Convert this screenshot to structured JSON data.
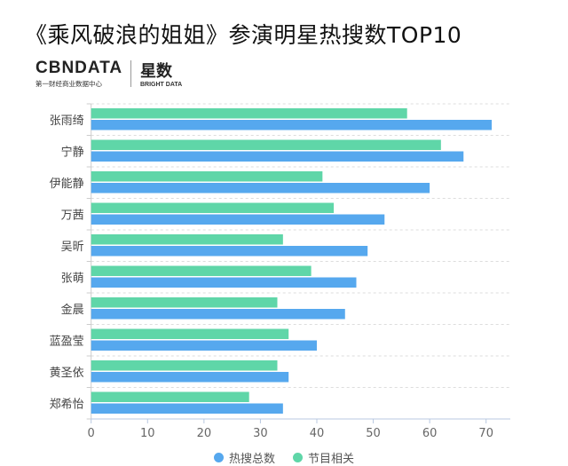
{
  "title": "《乘风破浪的姐姐》参演明星热搜数TOP10",
  "logo": {
    "brand": "CBNDATA",
    "brand_sub": "第一财经商业数据中心",
    "product": "星数",
    "product_sub": "BRIGHT DATA"
  },
  "chart_data": {
    "type": "bar",
    "orientation": "horizontal",
    "title": "《乘风破浪的姐姐》参演明星热搜数TOP10",
    "categories": [
      "张雨绮",
      "宁静",
      "伊能静",
      "万茜",
      "吴昕",
      "张萌",
      "金晨",
      "蓝盈莹",
      "黄圣依",
      "郑希怡"
    ],
    "series": [
      {
        "name": "热搜总数",
        "color": "#56a8ee",
        "values": [
          71,
          66,
          60,
          52,
          49,
          47,
          45,
          40,
          35,
          34
        ]
      },
      {
        "name": "节目相关",
        "color": "#5fd6a8",
        "values": [
          56,
          62,
          41,
          43,
          34,
          39,
          33,
          35,
          33,
          28
        ]
      }
    ],
    "xticks": [
      "0",
      "10",
      "20",
      "30",
      "40",
      "50",
      "60",
      "70"
    ],
    "xlim": [
      0,
      70
    ],
    "grid": true,
    "legend_position": "bottom"
  }
}
